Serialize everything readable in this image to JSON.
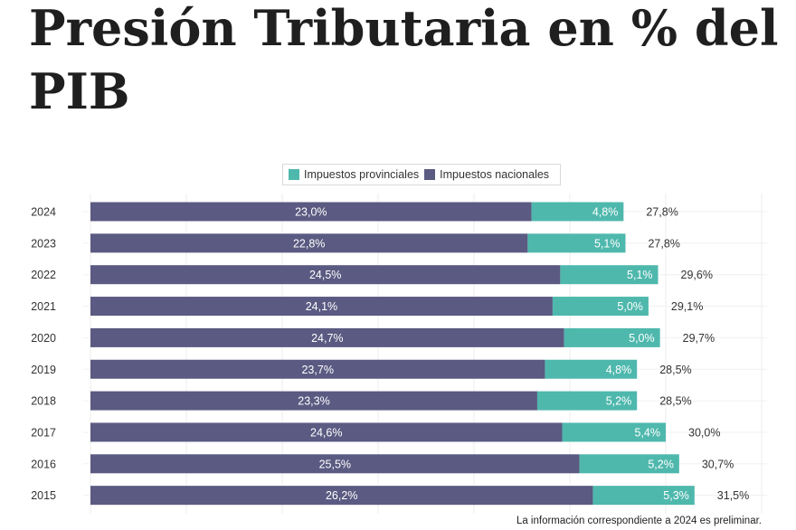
{
  "title": "Presión Tributaria en % del PIB",
  "note": "La información correspondiente a 2024 es preliminar.",
  "colors": {
    "provincial": "#4fb8ad",
    "national": "#5b5a82"
  },
  "chart_data": {
    "type": "bar",
    "orientation": "horizontal",
    "stacked": true,
    "categories": [
      "2024",
      "2023",
      "2022",
      "2021",
      "2020",
      "2019",
      "2018",
      "2017",
      "2016",
      "2015"
    ],
    "series": [
      {
        "name": "Impuestos nacionales",
        "values": [
          23.0,
          22.8,
          24.5,
          24.1,
          24.7,
          23.7,
          23.3,
          24.6,
          25.5,
          26.2
        ],
        "labels": [
          "23,0%",
          "22,8%",
          "24,5%",
          "24,1%",
          "24,7%",
          "23,7%",
          "23,3%",
          "24,6%",
          "25,5%",
          "26,2%"
        ]
      },
      {
        "name": "Impuestos provinciales",
        "values": [
          4.8,
          5.1,
          5.1,
          5.0,
          5.0,
          4.8,
          5.2,
          5.4,
          5.2,
          5.3
        ],
        "labels": [
          "4,8%",
          "5,1%",
          "5,1%",
          "5,0%",
          "5,0%",
          "4,8%",
          "5,2%",
          "5,4%",
          "5,2%",
          "5,3%"
        ]
      }
    ],
    "totals": [
      27.8,
      27.8,
      29.6,
      29.1,
      29.7,
      28.5,
      28.5,
      30.0,
      30.7,
      31.5
    ],
    "total_labels": [
      "27,8%",
      "27,8%",
      "29,6%",
      "29,1%",
      "29,7%",
      "28,5%",
      "28,5%",
      "30,0%",
      "30,7%",
      "31,5%"
    ],
    "xlim": [
      0,
      35
    ],
    "grid": true,
    "legend_position": "top"
  }
}
